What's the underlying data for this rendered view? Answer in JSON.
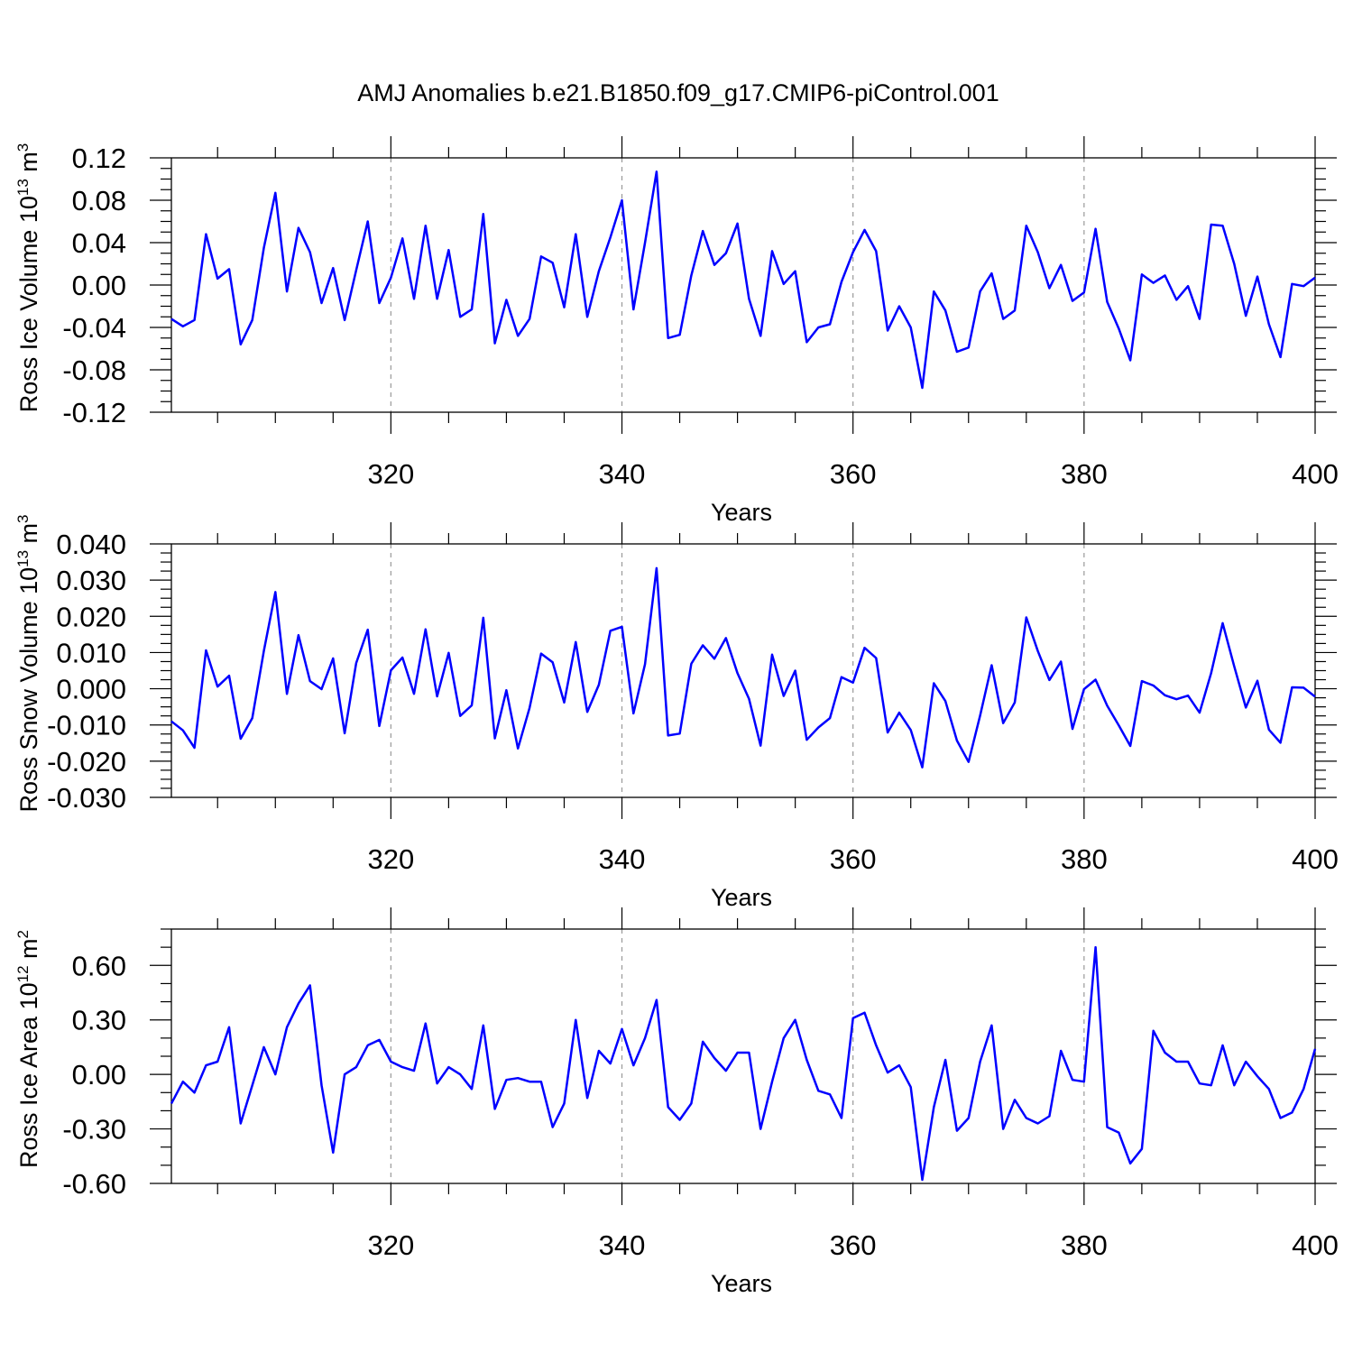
{
  "title": "AMJ Anomalies b.e21.B1850.f09_g17.CMIP6-piControl.001",
  "colors": {
    "series": "#0000ff",
    "grid": "#999999"
  },
  "chart_data": [
    {
      "type": "line",
      "title": "",
      "xlabel": "Years",
      "ylabel_main": "Ross Ice Volume 10",
      "ylabel_exp": "13",
      "ylabel_unit": " m",
      "ylabel_unit_exp": "3",
      "xlim": [
        301,
        400
      ],
      "ylim": [
        -0.12,
        0.12
      ],
      "xticks": [
        "320",
        "340",
        "360",
        "380",
        "400"
      ],
      "yticks": [
        "0.12",
        "0.08",
        "0.04",
        "0.00",
        "-0.04",
        "-0.08",
        "-0.12"
      ],
      "grid": "vertical dashed at 320, 340, 360, 380",
      "x_start": 301,
      "series": [
        {
          "values": [
            -0.032,
            -0.039,
            -0.033,
            0.048,
            0.006,
            0.015,
            -0.056,
            -0.033,
            0.035,
            0.087,
            -0.006,
            0.054,
            0.031,
            -0.017,
            0.016,
            -0.033,
            0.014,
            0.06,
            -0.017,
            0.007,
            0.044,
            -0.013,
            0.056,
            -0.013,
            0.033,
            -0.03,
            -0.023,
            0.067,
            -0.055,
            -0.014,
            -0.048,
            -0.032,
            0.027,
            0.021,
            -0.021,
            0.048,
            -0.03,
            0.013,
            0.045,
            0.08,
            -0.023,
            0.04,
            0.107,
            -0.05,
            -0.047,
            0.009,
            0.051,
            0.019,
            0.03,
            0.058,
            -0.013,
            -0.048,
            0.032,
            0.001,
            0.013,
            -0.054,
            -0.04,
            -0.037,
            0.003,
            0.031,
            0.052,
            0.032,
            -0.043,
            -0.02,
            -0.04,
            -0.097,
            -0.006,
            -0.024,
            -0.063,
            -0.059,
            -0.006,
            0.011,
            -0.032,
            -0.024,
            0.056,
            0.031,
            -0.003,
            0.019,
            -0.015,
            -0.007,
            0.053,
            -0.016,
            -0.041,
            -0.071,
            0.01,
            0.002,
            0.009,
            -0.014,
            -0.001,
            -0.032,
            0.057,
            0.056,
            0.02,
            -0.029,
            0.008,
            -0.037,
            -0.068,
            0.001,
            -0.001,
            0.007
          ]
        }
      ]
    },
    {
      "type": "line",
      "title": "",
      "xlabel": "Years",
      "ylabel_main": "Ross Snow Volume 10",
      "ylabel_exp": "13",
      "ylabel_unit": " m",
      "ylabel_unit_exp": "3",
      "xlim": [
        301,
        400
      ],
      "ylim": [
        -0.03,
        0.04
      ],
      "xticks": [
        "320",
        "340",
        "360",
        "380",
        "400"
      ],
      "yticks": [
        "0.040",
        "0.030",
        "0.020",
        "0.010",
        "0.000",
        "-0.010",
        "-0.020",
        "-0.030"
      ],
      "grid": "vertical dashed at 320, 340, 360, 380",
      "x_start": 301,
      "series": [
        {
          "values": [
            -0.009,
            -0.0115,
            -0.0163,
            0.0106,
            0.0006,
            0.0036,
            -0.0138,
            -0.0081,
            0.0104,
            0.0267,
            -0.0014,
            0.0148,
            0.0021,
            -0.0001,
            0.0084,
            -0.0123,
            0.0071,
            0.0163,
            -0.0103,
            0.0051,
            0.0086,
            -0.0014,
            0.0164,
            -0.0021,
            0.0099,
            -0.0075,
            -0.0046,
            0.0196,
            -0.0137,
            -0.0004,
            -0.0165,
            -0.0053,
            0.0097,
            0.0073,
            -0.0038,
            0.0129,
            -0.0064,
            0.0011,
            0.016,
            0.0171,
            -0.0068,
            0.0068,
            0.0333,
            -0.0129,
            -0.0124,
            0.0069,
            0.012,
            0.0083,
            0.014,
            0.0043,
            -0.0028,
            -0.0157,
            0.0094,
            -0.002,
            0.005,
            -0.0141,
            -0.0107,
            -0.0081,
            0.0032,
            0.0017,
            0.0113,
            0.0085,
            -0.0121,
            -0.0066,
            -0.0114,
            -0.0217,
            0.0015,
            -0.0034,
            -0.0143,
            -0.0202,
            -0.0074,
            0.0065,
            -0.0095,
            -0.0038,
            0.0197,
            0.0104,
            0.0024,
            0.0075,
            -0.0111,
            -0.0001,
            0.0025,
            -0.0047,
            -0.0101,
            -0.0158,
            0.0021,
            0.0009,
            -0.0018,
            -0.0029,
            -0.0019,
            -0.0066,
            0.0043,
            0.0181,
            0.0062,
            -0.0052,
            0.0022,
            -0.0113,
            -0.0149,
            0.0004,
            0.0003,
            -0.0022
          ]
        }
      ]
    },
    {
      "type": "line",
      "title": "",
      "xlabel": "Years",
      "ylabel_main": "Ross Ice Area 10",
      "ylabel_exp": "12",
      "ylabel_unit": " m",
      "ylabel_unit_exp": "2",
      "xlim": [
        301,
        400
      ],
      "ylim": [
        -0.6,
        0.8
      ],
      "xticks": [
        "320",
        "340",
        "360",
        "380",
        "400"
      ],
      "yticks": [
        "0.60",
        "0.30",
        "0.00",
        "-0.30",
        "-0.60"
      ],
      "grid": "vertical dashed at 320, 340, 360, 380",
      "x_start": 301,
      "series": [
        {
          "values": [
            -0.16,
            -0.04,
            -0.1,
            0.05,
            0.07,
            0.26,
            -0.27,
            -0.06,
            0.15,
            0.0,
            0.26,
            0.39,
            0.49,
            -0.06,
            -0.43,
            0.0,
            0.04,
            0.16,
            0.19,
            0.07,
            0.04,
            0.02,
            0.28,
            -0.05,
            0.04,
            0.0,
            -0.08,
            0.27,
            -0.19,
            -0.03,
            -0.02,
            -0.04,
            -0.04,
            -0.29,
            -0.16,
            0.3,
            -0.13,
            0.13,
            0.06,
            0.25,
            0.05,
            0.2,
            0.41,
            -0.18,
            -0.25,
            -0.16,
            0.18,
            0.09,
            0.02,
            0.12,
            0.12,
            -0.3,
            -0.04,
            0.2,
            0.3,
            0.08,
            -0.09,
            -0.11,
            -0.24,
            0.31,
            0.34,
            0.16,
            0.01,
            0.05,
            -0.07,
            -0.58,
            -0.18,
            0.08,
            -0.31,
            -0.24,
            0.07,
            0.27,
            -0.3,
            -0.14,
            -0.24,
            -0.27,
            -0.23,
            0.13,
            -0.03,
            -0.04,
            0.7,
            -0.29,
            -0.32,
            -0.49,
            -0.41,
            0.24,
            0.12,
            0.07,
            0.07,
            -0.05,
            -0.06,
            0.16,
            -0.06,
            0.07,
            -0.01,
            -0.08,
            -0.24,
            -0.21,
            -0.08,
            0.14
          ]
        }
      ]
    }
  ]
}
